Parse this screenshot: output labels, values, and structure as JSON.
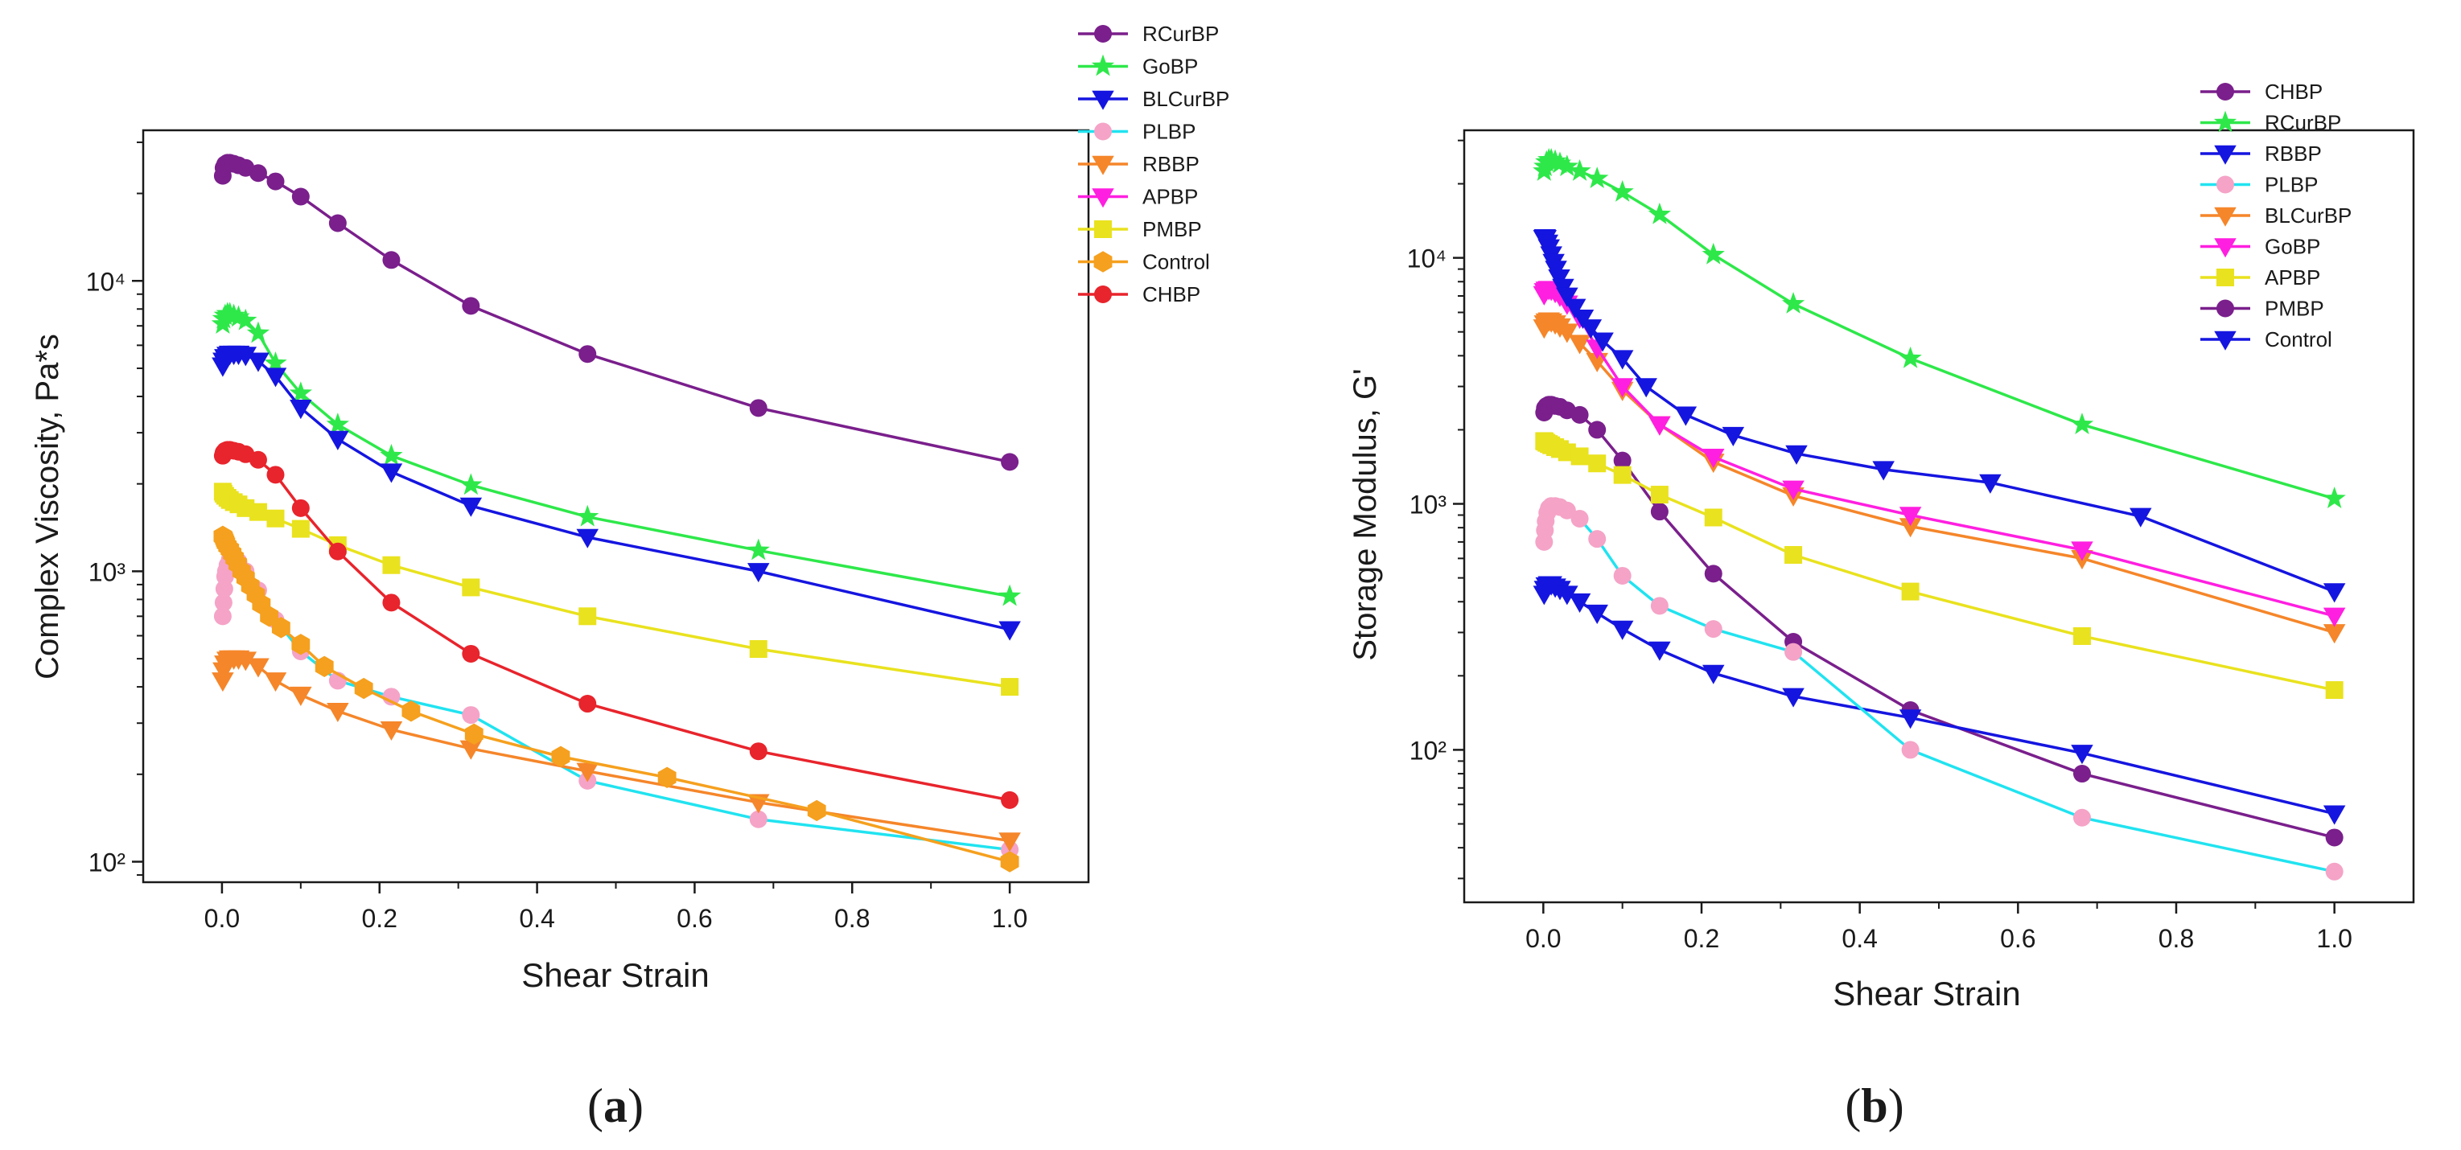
{
  "chart_data": [
    {
      "type": "line",
      "panel_label": "(a)",
      "panel_letter": "a",
      "xlabel": "Shear Strain",
      "ylabel": "Complex Viscosity, Pa*s",
      "yscale": "log",
      "xlim": [
        -0.1,
        1.1
      ],
      "ylim": [
        85,
        33000
      ],
      "xticks": [
        0.0,
        0.2,
        0.4,
        0.6,
        0.8,
        1.0
      ],
      "xtick_labels": [
        "0.0",
        "0.2",
        "0.4",
        "0.6",
        "0.8",
        "1.0"
      ],
      "yticks": [
        100,
        1000,
        10000
      ],
      "ytick_labels": [
        "10²",
        "10³",
        "10⁴"
      ],
      "legend_position": "top-right",
      "series": [
        {
          "name": "RCurBP",
          "color": "#7a1f8c",
          "marker": "circle",
          "x": [
            0.001,
            0.002,
            0.004,
            0.007,
            0.01,
            0.015,
            0.021,
            0.03,
            0.046,
            0.068,
            0.1,
            0.147,
            0.215,
            0.316,
            0.464,
            0.681,
            1.0
          ],
          "y": [
            23000,
            24500,
            25200,
            25500,
            25500,
            25300,
            25000,
            24500,
            23500,
            22000,
            19500,
            15800,
            11800,
            8200,
            5600,
            3650,
            2380
          ]
        },
        {
          "name": "GoBP",
          "color": "#2ee84a",
          "marker": "star",
          "x": [
            0.001,
            0.002,
            0.004,
            0.007,
            0.01,
            0.015,
            0.021,
            0.03,
            0.046,
            0.068,
            0.1,
            0.147,
            0.215,
            0.316,
            0.464,
            0.681,
            1.0
          ],
          "y": [
            7100,
            7400,
            7600,
            7700,
            7700,
            7600,
            7500,
            7300,
            6600,
            5200,
            4100,
            3200,
            2500,
            1980,
            1540,
            1180,
            820
          ]
        },
        {
          "name": "BLCurBP",
          "color": "#1515e0",
          "marker": "triangle-down",
          "x": [
            0.001,
            0.002,
            0.004,
            0.007,
            0.01,
            0.015,
            0.021,
            0.03,
            0.046,
            0.068,
            0.1,
            0.147,
            0.215,
            0.316,
            0.464,
            0.681,
            1.0
          ],
          "y": [
            5100,
            5300,
            5450,
            5550,
            5600,
            5600,
            5600,
            5550,
            5300,
            4700,
            3650,
            2850,
            2200,
            1680,
            1310,
            1000,
            630
          ]
        },
        {
          "name": "PLBP",
          "color": "#21e3f0",
          "marker": "circle",
          "marker_color": "#f5a3c7",
          "x": [
            0.001,
            0.002,
            0.003,
            0.004,
            0.005,
            0.007,
            0.01,
            0.015,
            0.021,
            0.03,
            0.046,
            0.068,
            0.1,
            0.147,
            0.215,
            0.316,
            0.464,
            0.681,
            1.0
          ],
          "y": [
            700,
            780,
            870,
            960,
            1000,
            1050,
            1100,
            1100,
            1080,
            1000,
            860,
            680,
            530,
            420,
            370,
            320,
            190,
            140,
            110
          ]
        },
        {
          "name": "RBBP",
          "color": "#f5862a",
          "marker": "triangle-down",
          "x": [
            0.001,
            0.002,
            0.004,
            0.007,
            0.01,
            0.015,
            0.021,
            0.03,
            0.046,
            0.068,
            0.1,
            0.147,
            0.215,
            0.316,
            0.464,
            0.681,
            1.0
          ],
          "y": [
            420,
            455,
            480,
            495,
            500,
            500,
            500,
            495,
            470,
            420,
            375,
            330,
            285,
            245,
            205,
            160,
            118
          ]
        },
        {
          "name": "APBP",
          "color": "#ff1fe0",
          "marker": "triangle-down",
          "x": [],
          "y": []
        },
        {
          "name": "PMBP",
          "color": "#e9e21e",
          "marker": "square",
          "x": [
            0.001,
            0.002,
            0.004,
            0.007,
            0.01,
            0.015,
            0.021,
            0.03,
            0.046,
            0.068,
            0.1,
            0.147,
            0.215,
            0.316,
            0.464,
            0.681,
            1.0
          ],
          "y": [
            1880,
            1850,
            1820,
            1790,
            1760,
            1730,
            1700,
            1650,
            1600,
            1520,
            1400,
            1230,
            1050,
            880,
            700,
            540,
            400
          ]
        },
        {
          "name": "Control",
          "color": "#f5a01e",
          "marker": "hexagon",
          "x": [
            0.001,
            0.002,
            0.003,
            0.004,
            0.005,
            0.007,
            0.01,
            0.013,
            0.016,
            0.02,
            0.025,
            0.03,
            0.036,
            0.043,
            0.05,
            0.06,
            0.075,
            0.1,
            0.13,
            0.18,
            0.24,
            0.32,
            0.43,
            0.565,
            0.755,
            1.0
          ],
          "y": [
            1320,
            1310,
            1290,
            1270,
            1250,
            1220,
            1190,
            1150,
            1110,
            1060,
            1000,
            950,
            890,
            830,
            770,
            700,
            640,
            560,
            470,
            395,
            330,
            275,
            230,
            195,
            150,
            100
          ]
        },
        {
          "name": "CHBP",
          "color": "#e8242c",
          "marker": "circle",
          "x": [
            0.001,
            0.002,
            0.004,
            0.007,
            0.01,
            0.015,
            0.021,
            0.03,
            0.046,
            0.068,
            0.1,
            0.147,
            0.215,
            0.316,
            0.464,
            0.681,
            1.0
          ],
          "y": [
            2500,
            2560,
            2600,
            2620,
            2620,
            2600,
            2580,
            2530,
            2420,
            2150,
            1650,
            1170,
            780,
            520,
            350,
            240,
            163
          ]
        }
      ]
    },
    {
      "type": "line",
      "panel_label": "(b)",
      "panel_letter": "b",
      "xlabel": "Shear Strain",
      "ylabel": "Storage Modulus, G'",
      "yscale": "log",
      "xlim": [
        -0.1,
        1.1
      ],
      "ylim": [
        24,
        33000
      ],
      "xticks": [
        0.0,
        0.2,
        0.4,
        0.6,
        0.8,
        1.0
      ],
      "xtick_labels": [
        "0.0",
        "0.2",
        "0.4",
        "0.6",
        "0.8",
        "1.0"
      ],
      "yticks": [
        100,
        1000,
        10000
      ],
      "ytick_labels": [
        "10²",
        "10³",
        "10⁴"
      ],
      "legend_position": "top-right",
      "series": [
        {
          "name": "CHBP",
          "color": "#7a1f8c",
          "marker": "circle",
          "x": [
            0.001,
            0.002,
            0.004,
            0.007,
            0.01,
            0.015,
            0.021,
            0.03,
            0.046,
            0.068,
            0.1,
            0.147,
            0.215,
            0.316,
            0.464,
            0.681,
            1.0
          ],
          "y": [
            2350,
            2450,
            2500,
            2530,
            2530,
            2500,
            2480,
            2400,
            2300,
            2000,
            1500,
            930,
            520,
            275,
            145,
            80,
            44
          ]
        },
        {
          "name": "RCurBP",
          "color": "#2ee84a",
          "marker": "star",
          "x": [
            0.001,
            0.002,
            0.004,
            0.007,
            0.01,
            0.015,
            0.021,
            0.03,
            0.046,
            0.068,
            0.1,
            0.147,
            0.215,
            0.316,
            0.464,
            0.681,
            1.0
          ],
          "y": [
            22500,
            23500,
            24500,
            25000,
            25000,
            24700,
            24200,
            23500,
            22500,
            21000,
            18500,
            15000,
            10300,
            6500,
            3900,
            2100,
            1050
          ]
        },
        {
          "name": "RBBP",
          "color": "#1515e0",
          "marker": "triangle-down",
          "x": [
            0.001,
            0.002,
            0.004,
            0.007,
            0.01,
            0.015,
            0.021,
            0.03,
            0.046,
            0.068,
            0.1,
            0.147,
            0.215,
            0.316,
            0.464,
            0.681,
            1.0
          ],
          "y": [
            430,
            450,
            465,
            470,
            470,
            460,
            450,
            430,
            400,
            360,
            310,
            255,
            205,
            165,
            135,
            97,
            55
          ]
        },
        {
          "name": "PLBP",
          "color": "#21e3f0",
          "marker": "circle",
          "marker_color": "#f5a3c7",
          "x": [
            0.001,
            0.002,
            0.003,
            0.005,
            0.007,
            0.01,
            0.015,
            0.021,
            0.03,
            0.046,
            0.068,
            0.1,
            0.147,
            0.215,
            0.316,
            0.464,
            0.681,
            1.0
          ],
          "y": [
            700,
            780,
            850,
            920,
            960,
            980,
            980,
            970,
            940,
            870,
            720,
            510,
            385,
            310,
            250,
            100,
            53,
            32
          ]
        },
        {
          "name": "BLCurBP",
          "color": "#f5862a",
          "marker": "triangle-down",
          "x": [
            0.001,
            0.002,
            0.004,
            0.007,
            0.01,
            0.015,
            0.021,
            0.03,
            0.046,
            0.068,
            0.1,
            0.147,
            0.215,
            0.316,
            0.464,
            0.681,
            1.0
          ],
          "y": [
            5200,
            5400,
            5500,
            5550,
            5500,
            5400,
            5250,
            5000,
            4500,
            3800,
            2900,
            2100,
            1480,
            1080,
            810,
            600,
            300
          ]
        },
        {
          "name": "GoBP",
          "color": "#ff1fe0",
          "marker": "triangle-down",
          "x": [
            0.001,
            0.002,
            0.004,
            0.007,
            0.01,
            0.015,
            0.021,
            0.03,
            0.046,
            0.068,
            0.1,
            0.147,
            0.215,
            0.316,
            0.464,
            0.681,
            1.0
          ],
          "y": [
            7100,
            7300,
            7400,
            7450,
            7400,
            7250,
            7000,
            6500,
            5700,
            4300,
            3000,
            2100,
            1550,
            1150,
            900,
            650,
            350
          ]
        },
        {
          "name": "APBP",
          "color": "#e9e21e",
          "marker": "square",
          "x": [
            0.001,
            0.002,
            0.004,
            0.007,
            0.01,
            0.015,
            0.021,
            0.03,
            0.046,
            0.068,
            0.1,
            0.147,
            0.215,
            0.316,
            0.464,
            0.681,
            1.0
          ],
          "y": [
            1800,
            1790,
            1770,
            1750,
            1730,
            1700,
            1670,
            1620,
            1560,
            1460,
            1310,
            1090,
            880,
            620,
            440,
            290,
            175
          ]
        },
        {
          "name": "PMBP",
          "color": "#7a1f8c",
          "marker": "circle",
          "x": [],
          "y": []
        },
        {
          "name": "Control",
          "color": "#1515e0",
          "marker": "triangle-down",
          "x": [
            0.001,
            0.002,
            0.003,
            0.005,
            0.007,
            0.01,
            0.013,
            0.016,
            0.02,
            0.025,
            0.03,
            0.04,
            0.05,
            0.06,
            0.075,
            0.1,
            0.13,
            0.18,
            0.24,
            0.32,
            0.43,
            0.565,
            0.755,
            1.0
          ],
          "y": [
            12000,
            12100,
            12000,
            11500,
            11000,
            10300,
            9600,
            9000,
            8300,
            7600,
            7000,
            6300,
            5700,
            5200,
            4600,
            3900,
            3000,
            2300,
            1900,
            1600,
            1380,
            1220,
            890,
            440
          ]
        }
      ]
    }
  ]
}
